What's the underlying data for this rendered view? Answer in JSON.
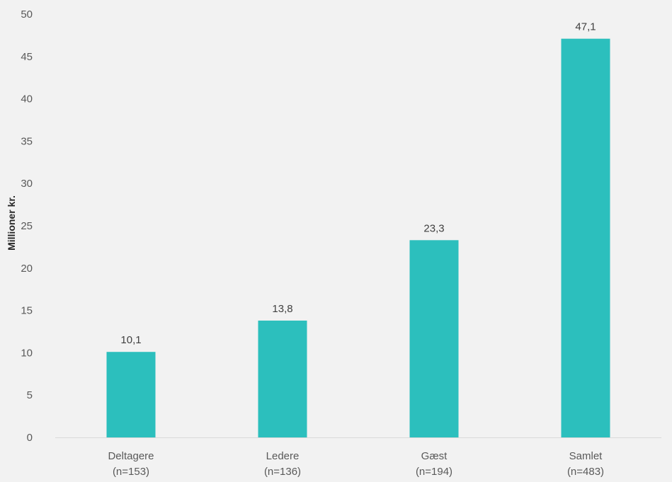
{
  "chart_data": {
    "type": "bar",
    "categories": [
      {
        "line1": "Deltagere",
        "line2": "(n=153)"
      },
      {
        "line1": "Ledere",
        "line2": "(n=136)"
      },
      {
        "line1": "Gæst",
        "line2": "(n=194)"
      },
      {
        "line1": "Samlet",
        "line2": "(n=483)"
      }
    ],
    "values": [
      10.1,
      13.8,
      23.3,
      47.1
    ],
    "value_labels": [
      "10,1",
      "13,8",
      "23,3",
      "47,1"
    ],
    "ylabel": "Millioner kr.",
    "ylim": [
      0,
      50
    ],
    "yticks": [
      "0",
      "5",
      "10",
      "15",
      "20",
      "25",
      "30",
      "35",
      "40",
      "45",
      "50"
    ],
    "bar_color": "#2cbfbd",
    "grid": false
  }
}
